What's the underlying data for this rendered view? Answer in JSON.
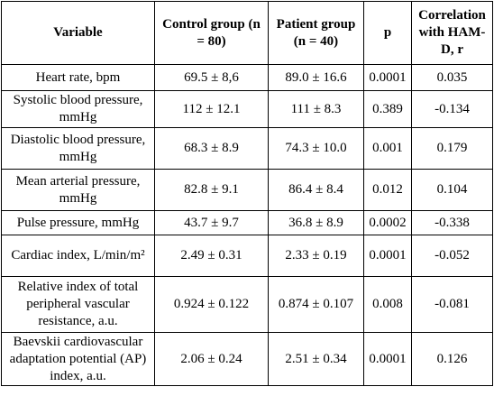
{
  "table": {
    "headers": [
      "Variable",
      "Control group (n = 80)",
      "Patient group (n = 40)",
      "p",
      "Correlation with HAM-D, r"
    ],
    "rows": [
      {
        "variable": "Heart rate, bpm",
        "control": "69.5 ± 8,6",
        "patient": "89.0 ± 16.6",
        "p": "0.0001",
        "r": "0.035"
      },
      {
        "variable": "Systolic blood pressure, mmHg",
        "control": "112 ± 12.1",
        "patient": "111 ± 8.3",
        "p": "0.389",
        "r": "-0.134"
      },
      {
        "variable": "Diastolic blood pressure, mmHg",
        "control": "68.3 ± 8.9",
        "patient": "74.3 ± 10.0",
        "p": "0.001",
        "r": "0.179"
      },
      {
        "variable": "Mean arterial pressure, mmHg",
        "control": "82.8 ± 9.1",
        "patient": "86.4 ± 8.4",
        "p": "0.012",
        "r": "0.104"
      },
      {
        "variable": "Pulse pressure, mmHg",
        "control": "43.7 ± 9.7",
        "patient": "36.8 ± 8.9",
        "p": "0.0002",
        "r": "-0.338"
      },
      {
        "variable": "Cardiac index, L/min/m²",
        "control": "2.49 ± 0.31",
        "patient": "2.33 ± 0.19",
        "p": "0.0001",
        "r": "-0.052"
      },
      {
        "variable": "Relative index of total peripheral vascular resistance, a.u.",
        "control": "0.924 ± 0.122",
        "patient": "0.874 ± 0.107",
        "p": "0.008",
        "r": "-0.081"
      },
      {
        "variable": "Baevskii cardiovascular adaptation potential (AP) index, a.u.",
        "control": "2.06 ± 0.24",
        "patient": "2.51 ± 0.34",
        "p": "0.0001",
        "r": "0.126"
      }
    ]
  }
}
